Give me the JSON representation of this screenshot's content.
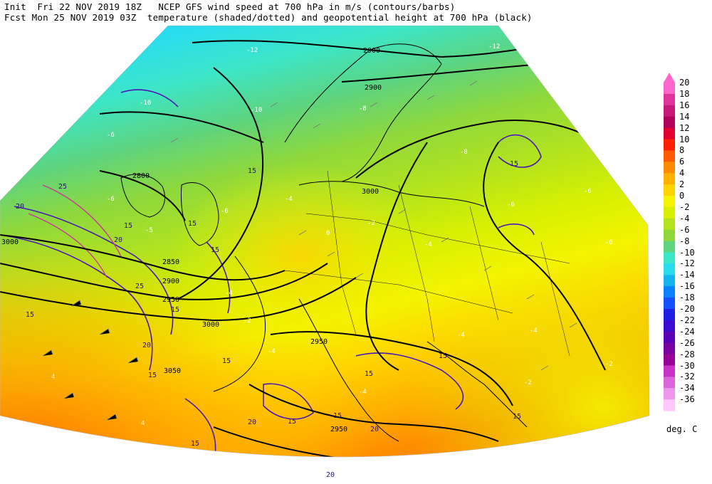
{
  "header": {
    "line1": "Init  Fri 22 NOV 2019 18Z   NCEP GFS wind speed at 700 hPa in m/s (contours/barbs)",
    "line2": "Fcst Mon 25 NOV 2019 03Z  temperature (shaded/dotted) and geopotential height at 700 hPa (black)"
  },
  "colorbar": {
    "units": "deg. C",
    "levels": [
      {
        "label": "20",
        "color": "#ff66cc"
      },
      {
        "label": "18",
        "color": "#e0339c"
      },
      {
        "label": "16",
        "color": "#c8197a"
      },
      {
        "label": "14",
        "color": "#b0005a"
      },
      {
        "label": "12",
        "color": "#e00030"
      },
      {
        "label": "10",
        "color": "#ff2000"
      },
      {
        "label": "8",
        "color": "#ff5a00"
      },
      {
        "label": "6",
        "color": "#ff8c00"
      },
      {
        "label": "4",
        "color": "#ffb000"
      },
      {
        "label": "2",
        "color": "#ffd400"
      },
      {
        "label": "0",
        "color": "#f4f400"
      },
      {
        "label": "-2",
        "color": "#d8f000"
      },
      {
        "label": "-4",
        "color": "#b4e41c"
      },
      {
        "label": "-6",
        "color": "#8ed83c"
      },
      {
        "label": "-8",
        "color": "#5cd480"
      },
      {
        "label": "-10",
        "color": "#3ce6c8"
      },
      {
        "label": "-12",
        "color": "#28dcf0"
      },
      {
        "label": "-14",
        "color": "#14b4f0"
      },
      {
        "label": "-16",
        "color": "#0a82ff"
      },
      {
        "label": "-18",
        "color": "#1450ff"
      },
      {
        "label": "-20",
        "color": "#1e1ee6"
      },
      {
        "label": "-22",
        "color": "#3c0ad2"
      },
      {
        "label": "-24",
        "color": "#5a00b4"
      },
      {
        "label": "-26",
        "color": "#7800a0"
      },
      {
        "label": "-28",
        "color": "#960096"
      },
      {
        "label": "-30",
        "color": "#c832c8"
      },
      {
        "label": "-32",
        "color": "#dc64dc"
      },
      {
        "label": "-34",
        "color": "#ee96ee"
      },
      {
        "label": "-36",
        "color": "#ffc8ff"
      }
    ]
  },
  "map_labels": {
    "height_contours": [
      "2900",
      "2900",
      "2800",
      "3000",
      "3000",
      "2850",
      "2900",
      "2950",
      "3000",
      "2950",
      "3050",
      "2950"
    ],
    "wind_contours": [
      "15",
      "15",
      "15",
      "20",
      "25",
      "15",
      "25",
      "15",
      "15",
      "20",
      "15",
      "20",
      "15",
      "15",
      "15",
      "15",
      "20",
      "15",
      "15",
      "20",
      "15",
      "15",
      "20"
    ],
    "temperature_labels": [
      "-12",
      "-12",
      "-10",
      "-10",
      "-8",
      "-8",
      "-6",
      "-6",
      "-6",
      "-6",
      "-5",
      "-4",
      "-4",
      "-4",
      "-4",
      "-2",
      "-2",
      "-2",
      "0",
      "-6",
      "-6",
      "-4",
      "-4",
      "-4",
      "-2",
      "4",
      "4"
    ]
  }
}
